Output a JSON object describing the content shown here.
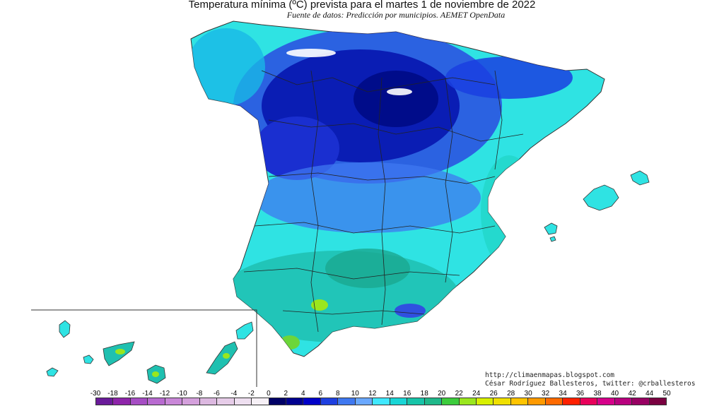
{
  "title": "Temperatura mínima (ºC) prevista para el martes 1 de noviembre de 2022",
  "subtitle": "Fuente de datos: Predicción por municipios. AEMET OpenData",
  "credits": {
    "url": "http://climaenmapas.blogspot.com",
    "author": "César Rodríguez Ballesteros, twitter: @crballesteros"
  },
  "legend": {
    "ticks": [
      "-30",
      "-18",
      "-16",
      "-14",
      "-12",
      "-10",
      "-8",
      "-6",
      "-4",
      "-2",
      "0",
      "2",
      "4",
      "6",
      "8",
      "10",
      "12",
      "14",
      "16",
      "18",
      "20",
      "22",
      "24",
      "26",
      "28",
      "30",
      "32",
      "34",
      "36",
      "38",
      "40",
      "42",
      "44",
      "50"
    ],
    "colors": [
      "#6a1b9a",
      "#8e24aa",
      "#a64dc4",
      "#b86ad0",
      "#c987d8",
      "#d4a0dc",
      "#dcb8e0",
      "#e6cce8",
      "#eedff0",
      "#f6f0f6",
      "#000066",
      "#00008f",
      "#0000c8",
      "#1e3fe0",
      "#3f78f0",
      "#6aa8ff",
      "#40e8ff",
      "#19d6d6",
      "#17c4a8",
      "#1fb88a",
      "#3ccc3c",
      "#9ae61e",
      "#d8f000",
      "#f0e000",
      "#ffc400",
      "#ff9a00",
      "#ff6a00",
      "#ff2000",
      "#e8005a",
      "#d6008a",
      "#b8007e",
      "#980062",
      "#7a0040"
    ]
  },
  "colors": {
    "land_default": "#2fe3e3",
    "sea": "#ffffff",
    "borders": "#333333"
  }
}
